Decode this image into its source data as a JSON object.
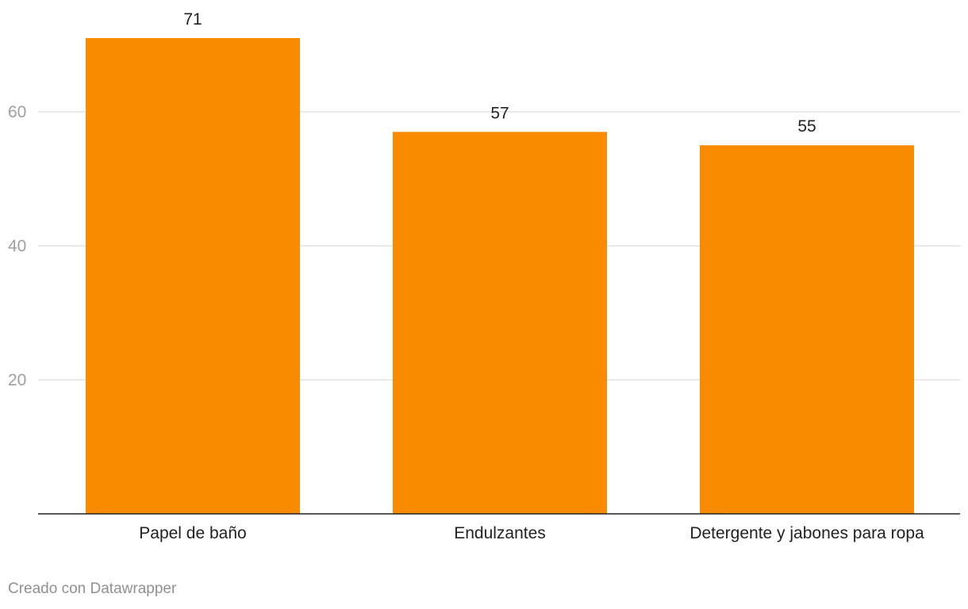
{
  "chart_data": {
    "type": "bar",
    "categories": [
      "Papel de baño",
      "Endulzantes",
      "Detergente y jabones para ropa"
    ],
    "values": [
      71,
      57,
      55
    ],
    "title": "",
    "xlabel": "",
    "ylabel": "",
    "ylim": [
      0,
      71
    ],
    "yticks": [
      20,
      40,
      60
    ],
    "grid": true,
    "bar_color": "#f98b00",
    "data_labels": [
      "71",
      "57",
      "55"
    ]
  },
  "footer": {
    "credit": "Creado con Datawrapper"
  }
}
